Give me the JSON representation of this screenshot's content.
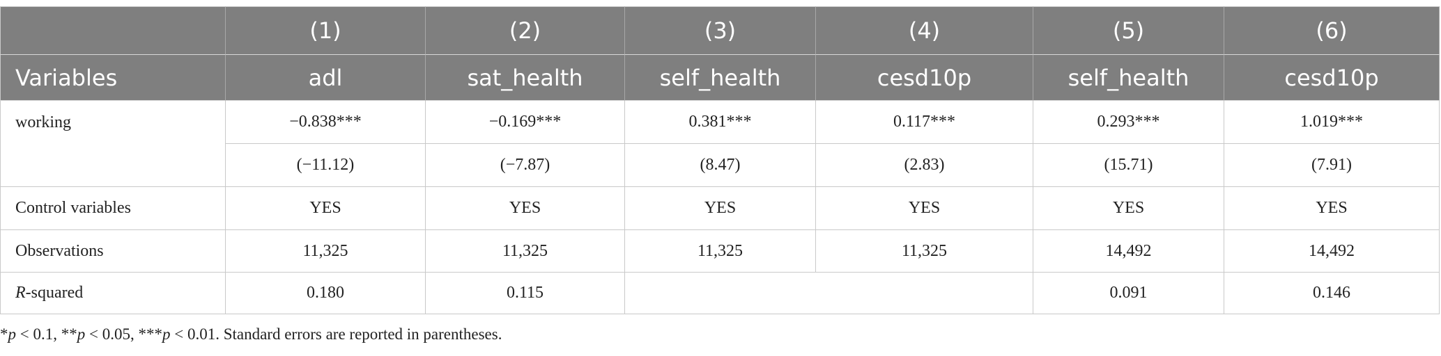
{
  "table": {
    "header": {
      "numbers": [
        "(1)",
        "(2)",
        "(3)",
        "(4)",
        "(5)",
        "(6)"
      ],
      "label": "Variables",
      "dependent": [
        "adl",
        "sat_health",
        "self_health",
        "cesd10p",
        "self_health",
        "cesd10p"
      ]
    },
    "working": {
      "label": "working",
      "coefficients": [
        "−0.838***",
        "−0.169***",
        "0.381***",
        "0.117***",
        "0.293***",
        "1.019***"
      ],
      "t_stats": [
        "(−11.12)",
        "(−7.87)",
        "(8.47)",
        "(2.83)",
        "(15.71)",
        "(7.91)"
      ]
    },
    "control_variables": {
      "label": "Control variables",
      "values": [
        "YES",
        "YES",
        "YES",
        "YES",
        "YES",
        "YES"
      ]
    },
    "observations": {
      "label": "Observations",
      "values": [
        "11,325",
        "11,325",
        "11,325",
        "11,325",
        "14,492",
        "14,492"
      ]
    },
    "r_squared": {
      "label_parts": [
        "R",
        "-squared"
      ],
      "values_left": [
        "0.180",
        "0.115"
      ],
      "values_right": [
        "0.091",
        "0.146"
      ]
    },
    "footnote": [
      "*",
      "p",
      " < 0.1, **",
      "p",
      " < 0.05, ***",
      "p",
      " < 0.01. Standard errors are reported in parentheses."
    ]
  }
}
